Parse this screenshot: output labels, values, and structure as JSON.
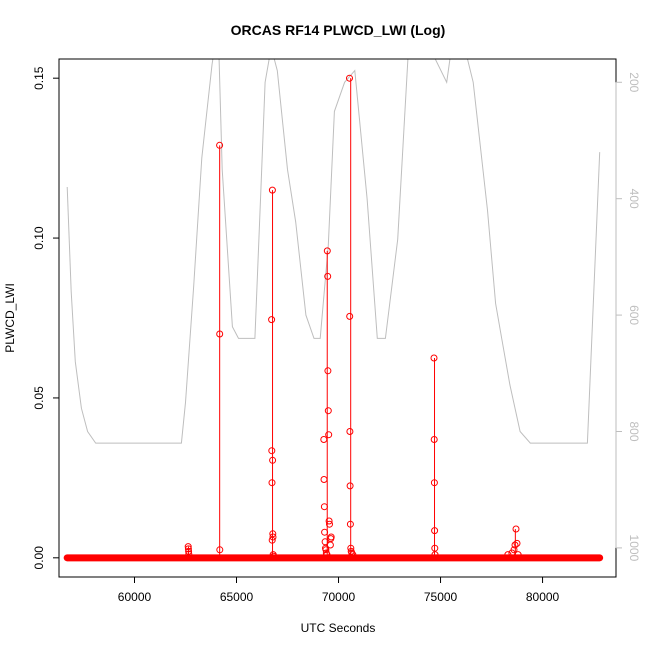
{
  "chart_data": {
    "type": "line",
    "title": "ORCAS RF14 PLWCD_LWI (Log)",
    "xlabel": "UTC Seconds",
    "ylabel": "PLWCD_LWI",
    "xlim": [
      56300,
      83600
    ],
    "ylim": [
      -0.006,
      0.156
    ],
    "y2lim": [
      1050,
      160
    ],
    "x_ticks": [
      60000,
      65000,
      70000,
      75000,
      80000
    ],
    "x_tick_labels": [
      "60000",
      "65000",
      "70000",
      "75000",
      "80000"
    ],
    "y_ticks": [
      0,
      0.05,
      0.1,
      0.15
    ],
    "y_tick_labels": [
      "0.00",
      "0.05",
      "0.10",
      "0.15"
    ],
    "y2_ticks": [
      200,
      400,
      600,
      800,
      1000
    ],
    "y2_tick_labels": [
      "200",
      "400",
      "600",
      "800",
      "1000"
    ],
    "colors": {
      "series": "#ff0000",
      "pressure": "#bebebe",
      "axis": "#000000",
      "axis2": "#bebebe"
    },
    "grid": false,
    "baseline": {
      "x_start": 56700,
      "x_end": 82800,
      "value": 0
    },
    "pressure_trace": {
      "x": [
        56700,
        56900,
        57100,
        57400,
        57700,
        58100,
        59500,
        61000,
        62300,
        62500,
        62900,
        63300,
        63800,
        64100,
        64300,
        64800,
        65100,
        65500,
        65900,
        66200,
        66400,
        66700,
        67000,
        67500,
        67900,
        68400,
        68800,
        69100,
        69500,
        69800,
        70300,
        70800,
        71400,
        71900,
        72300,
        72900,
        73400,
        74000,
        74600,
        75300,
        75700,
        75900,
        76600,
        77300,
        77700,
        78000,
        78400,
        78900,
        79400,
        80000,
        81000,
        82200,
        82800
      ],
      "values": [
        380,
        560,
        680,
        760,
        800,
        820,
        820,
        820,
        820,
        750,
        550,
        330,
        170,
        100,
        350,
        620,
        640,
        640,
        640,
        380,
        200,
        140,
        180,
        350,
        440,
        600,
        640,
        640,
        480,
        250,
        200,
        180,
        400,
        640,
        640,
        470,
        160,
        110,
        150,
        200,
        100,
        100,
        200,
        420,
        580,
        640,
        720,
        800,
        820,
        820,
        820,
        820,
        320
      ]
    },
    "series": [
      {
        "x": [
          62630,
          62640,
          62650,
          62660,
          64170,
          64175,
          64180,
          66720,
          66730,
          66740,
          66750,
          66760,
          66770,
          66780,
          66790,
          66800,
          66820,
          69280,
          69290,
          69310,
          69320,
          69340,
          69360,
          69380,
          69400,
          69430,
          69450,
          69470,
          69480,
          69500,
          69520,
          69540,
          69560,
          69600,
          69620,
          69640,
          70540,
          70550,
          70560,
          70570,
          70580,
          70600,
          70620,
          70650,
          70700,
          74680,
          74690,
          74700,
          74710,
          74720,
          74730,
          78300,
          78500,
          78600,
          78650,
          78700,
          78750,
          78800
        ],
        "values": [
          0.0035,
          0.0028,
          0.002,
          0.0012,
          0.129,
          0.07,
          0.0025,
          0.0745,
          0.0335,
          0.0235,
          0.0055,
          0.115,
          0.0305,
          0.0075,
          0.0065,
          0.001,
          0.0005,
          0.037,
          0.0245,
          0.016,
          0.008,
          0.005,
          0.003,
          0.0025,
          0.0015,
          0.001,
          0.096,
          0.088,
          0.0585,
          0.046,
          0.0385,
          0.0115,
          0.0105,
          0.004,
          0.006,
          0.0065,
          0.15,
          0.0755,
          0.0395,
          0.0225,
          0.0105,
          0.003,
          0.002,
          0.0015,
          0.001,
          0.0625,
          0.037,
          0.0235,
          0.0085,
          0.003,
          0.001,
          0.001,
          0.0015,
          0.0025,
          0.004,
          0.009,
          0.0045,
          0.001
        ]
      }
    ]
  }
}
